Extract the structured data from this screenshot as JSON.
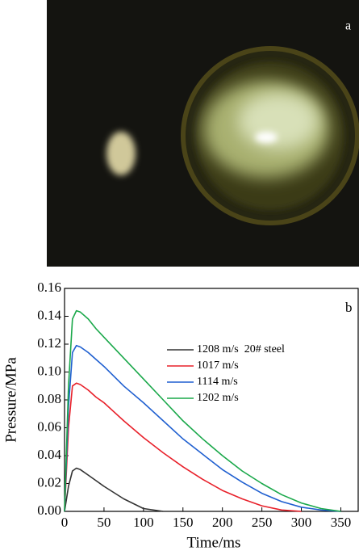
{
  "photo": {
    "label": "a"
  },
  "chart_data": {
    "type": "line",
    "panel_label": "b",
    "xlabel": "Time/ms",
    "ylabel": "Pressure/MPa",
    "x": [
      0,
      5,
      10,
      15,
      20,
      30,
      40,
      50,
      75,
      100,
      125,
      150,
      175,
      200,
      225,
      250,
      275,
      300,
      325,
      350
    ],
    "xlim": [
      0,
      372
    ],
    "xticks": [
      0,
      50,
      100,
      150,
      200,
      250,
      300,
      350
    ],
    "ylim": [
      0,
      0.16
    ],
    "yticks": [
      {
        "value": 0,
        "label": "0.00"
      },
      {
        "value": 0.02,
        "label": "0.02"
      },
      {
        "value": 0.04,
        "label": "0.04"
      },
      {
        "value": 0.06,
        "label": "0.06"
      },
      {
        "value": 0.08,
        "label": "0.08"
      },
      {
        "value": 0.1,
        "label": "0.10"
      },
      {
        "value": 0.12,
        "label": "0.12"
      },
      {
        "value": 0.14,
        "label": "0.14"
      },
      {
        "value": 0.16,
        "label": "0.16"
      }
    ],
    "series": [
      {
        "name": "1208 m/s  20# steel",
        "color": "#333333",
        "values": [
          0,
          0.018,
          0.029,
          0.031,
          0.03,
          0.026,
          0.022,
          0.018,
          0.009,
          0.002,
          0,
          null,
          null,
          null,
          null,
          null,
          null,
          null,
          null,
          null
        ]
      },
      {
        "name": "1017 m/s",
        "color": "#e8202a",
        "values": [
          0,
          0.06,
          0.09,
          0.092,
          0.091,
          0.087,
          0.082,
          0.078,
          0.065,
          0.053,
          0.042,
          0.032,
          0.023,
          0.015,
          0.009,
          0.004,
          0.001,
          0,
          null,
          null
        ]
      },
      {
        "name": "1114 m/s",
        "color": "#1f5fd0",
        "values": [
          0,
          0.075,
          0.114,
          0.119,
          0.118,
          0.114,
          0.109,
          0.104,
          0.09,
          0.078,
          0.065,
          0.052,
          0.041,
          0.03,
          0.021,
          0.013,
          0.007,
          0.003,
          0.001,
          0
        ]
      },
      {
        "name": "1202 m/s",
        "color": "#1aa84a",
        "values": [
          0,
          0.09,
          0.138,
          0.144,
          0.143,
          0.138,
          0.131,
          0.125,
          0.11,
          0.095,
          0.08,
          0.065,
          0.052,
          0.04,
          0.029,
          0.02,
          0.012,
          0.006,
          0.002,
          0
        ]
      }
    ]
  }
}
